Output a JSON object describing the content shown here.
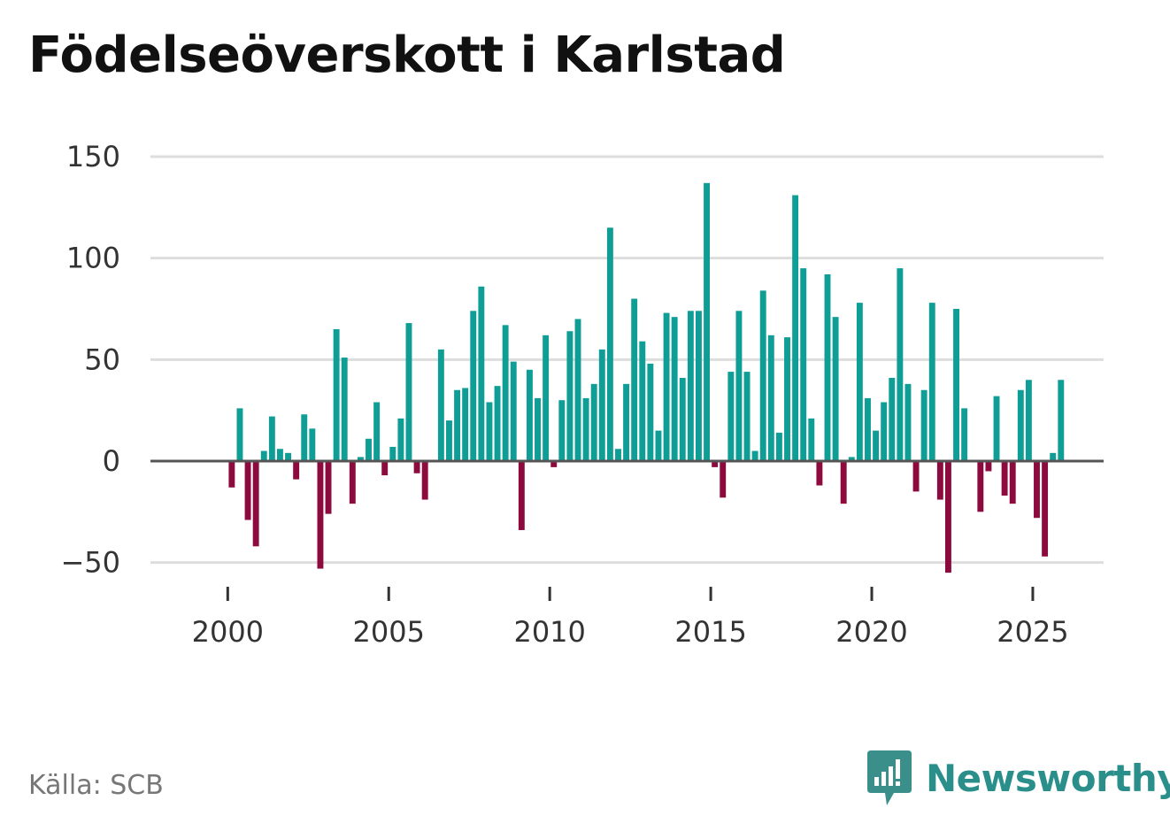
{
  "chart_data": {
    "type": "bar",
    "title": "Födelseöverskott i Karlstad",
    "xlabel": "",
    "ylabel": "",
    "ylim": [
      -60,
      150
    ],
    "xlim": [
      1997.6,
      2027.2
    ],
    "yticks": [
      -50,
      0,
      50,
      100,
      150
    ],
    "ytick_labels": [
      "−50",
      "0",
      "50",
      "100",
      "150"
    ],
    "xticks": [
      2000,
      2005,
      2010,
      2015,
      2020,
      2025
    ],
    "xtick_labels": [
      "2000",
      "2005",
      "2010",
      "2015",
      "2020",
      "2025"
    ],
    "grid": true,
    "start_year": 2000,
    "periods_per_year": 4,
    "colors": {
      "positive": "#0f9e96",
      "negative": "#8c0a3e",
      "grid": "#dddddd",
      "zero": "#555555"
    },
    "values": [
      -13,
      26,
      -29,
      -42,
      5,
      22,
      6,
      4,
      -9,
      23,
      16,
      -53,
      -26,
      65,
      51,
      -21,
      2,
      11,
      29,
      -7,
      7,
      21,
      68,
      -6,
      -19,
      0,
      55,
      20,
      35,
      36,
      74,
      86,
      29,
      37,
      67,
      49,
      -34,
      45,
      31,
      62,
      -3,
      30,
      64,
      70,
      31,
      38,
      55,
      115,
      6,
      38,
      80,
      59,
      48,
      15,
      73,
      71,
      41,
      74,
      74,
      137,
      -3,
      -18,
      44,
      74,
      44,
      5,
      84,
      62,
      14,
      61,
      131,
      95,
      21,
      -12,
      92,
      71,
      -21,
      2,
      78,
      31,
      15,
      29,
      41,
      95,
      38,
      -15,
      35,
      78,
      -19,
      -55,
      75,
      26,
      0,
      -25,
      -5,
      32,
      -17,
      -21,
      35,
      40,
      -28,
      -47,
      4,
      40
    ]
  },
  "source": "Källa: SCB",
  "brand": {
    "name": "Newsworthy",
    "icon": "newsworthy-chat-bar-icon",
    "color": "#3a8f8a"
  }
}
